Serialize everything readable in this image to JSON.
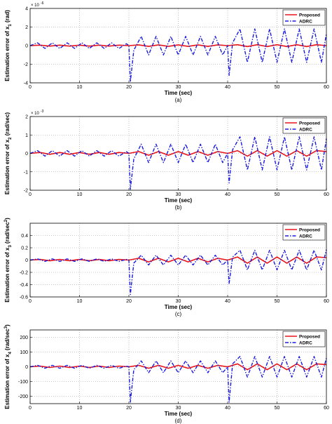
{
  "colors": {
    "proposed": "#e8151b",
    "adrc": "#1a1adf",
    "grid": "#9a9a9a",
    "axis": "#000000"
  },
  "chart_data": [
    {
      "type": "line",
      "panel_label": "(a)",
      "xlabel": "Time (sec)",
      "ylabel_main": "Estimation error of x",
      "ylabel_sub": "1",
      "ylabel_sup": "",
      "ylabel_unit": "(rad)",
      "exponent_label": "× 10",
      "exponent_power": "-6",
      "xlim": [
        0,
        60
      ],
      "ylim": [
        -4,
        4
      ],
      "xticks": [
        0,
        10,
        20,
        30,
        40,
        50,
        60
      ],
      "yticks": [
        -4,
        -2,
        0,
        2,
        4
      ],
      "ytick_labels": [
        "-4",
        "-2",
        "0",
        "2",
        "4"
      ],
      "xtick_labels": [
        "0",
        "10",
        "20",
        "30",
        "40",
        "50",
        "60"
      ],
      "grid": true,
      "legend_position": "top-right",
      "series": [
        {
          "name": "Proposed",
          "color_key": "proposed",
          "style": "solid",
          "x": [
            0,
            2,
            4,
            6,
            8,
            10,
            12,
            14,
            16,
            18,
            20,
            22,
            24,
            26,
            28,
            30,
            32,
            34,
            36,
            38,
            40,
            42,
            44,
            46,
            48,
            50,
            52,
            54,
            56,
            58,
            60
          ],
          "y": [
            0,
            0.05,
            -0.05,
            0.05,
            -0.05,
            0.05,
            -0.05,
            0.05,
            -0.05,
            0.05,
            0,
            0.08,
            -0.08,
            0.08,
            -0.08,
            0.08,
            -0.08,
            0.08,
            -0.08,
            0.08,
            0,
            0.1,
            -0.1,
            0.1,
            -0.1,
            0.1,
            -0.1,
            0.1,
            -0.1,
            0.1,
            0
          ]
        },
        {
          "name": "ADRC",
          "color_key": "adrc",
          "style": "dashdot",
          "x": [
            0,
            1.5,
            3,
            4.5,
            6,
            7.5,
            9,
            10.5,
            12,
            13.5,
            15,
            16.5,
            18,
            19.5,
            20,
            20.3,
            21,
            22.5,
            24,
            25.5,
            27,
            28.5,
            30,
            31.5,
            33,
            34.5,
            36,
            37.5,
            39,
            40,
            40.3,
            41,
            42.5,
            44,
            45.5,
            47,
            48.5,
            50,
            51.5,
            53,
            54.5,
            56,
            57.5,
            59,
            60
          ],
          "y": [
            0,
            0.3,
            -0.3,
            0.3,
            -0.3,
            0.3,
            -0.3,
            0.3,
            -0.3,
            0.3,
            -0.3,
            0.3,
            -0.3,
            0.2,
            0,
            -3.9,
            -0.5,
            1,
            -1,
            1,
            -1,
            1,
            -1,
            1,
            -1,
            1,
            -1,
            1,
            -1,
            0,
            -3.2,
            0.3,
            1.8,
            -1.8,
            1.8,
            -1.8,
            1.8,
            -1.8,
            1.8,
            -1.8,
            1.8,
            -1.8,
            1.8,
            -1.8,
            1.3
          ]
        }
      ]
    },
    {
      "type": "line",
      "panel_label": "(b)",
      "xlabel": "Time (sec)",
      "ylabel_main": "Estimation error of x",
      "ylabel_sub": "2",
      "ylabel_sup": "",
      "ylabel_unit": "(rad/sec)",
      "exponent_label": "× 10",
      "exponent_power": "-3",
      "xlim": [
        0,
        60
      ],
      "ylim": [
        -2,
        2
      ],
      "xticks": [
        0,
        10,
        20,
        30,
        40,
        50,
        60
      ],
      "yticks": [
        -2,
        -1,
        0,
        1,
        2
      ],
      "ytick_labels": [
        "-2",
        "-1",
        "0",
        "1",
        "2"
      ],
      "xtick_labels": [
        "0",
        "10",
        "20",
        "30",
        "40",
        "50",
        "60"
      ],
      "grid": true,
      "legend_position": "top-right",
      "series": [
        {
          "name": "Proposed",
          "color_key": "proposed",
          "style": "solid",
          "x": [
            0,
            2,
            4,
            6,
            8,
            10,
            12,
            14,
            16,
            18,
            20,
            22,
            24,
            26,
            28,
            30,
            32,
            34,
            36,
            38,
            40,
            42,
            44,
            46,
            48,
            50,
            52,
            54,
            56,
            58,
            60
          ],
          "y": [
            0,
            0.05,
            -0.05,
            0.05,
            -0.05,
            0.05,
            -0.05,
            0.05,
            -0.05,
            0.05,
            0,
            0.1,
            -0.1,
            0.1,
            -0.1,
            0.1,
            -0.1,
            0.1,
            -0.1,
            0.1,
            0,
            0.15,
            -0.15,
            0.15,
            -0.15,
            0.15,
            -0.15,
            0.15,
            -0.15,
            0.15,
            0.1
          ]
        },
        {
          "name": "ADRC",
          "color_key": "adrc",
          "style": "dashdot",
          "x": [
            0,
            1.5,
            3,
            4.5,
            6,
            7.5,
            9,
            10.5,
            12,
            13.5,
            15,
            16.5,
            18,
            19.5,
            20,
            20.3,
            21,
            22.5,
            24,
            25.5,
            27,
            28.5,
            30,
            31.5,
            33,
            34.5,
            36,
            37.5,
            39,
            40,
            40.3,
            41,
            42.5,
            44,
            45.5,
            47,
            48.5,
            50,
            51.5,
            53,
            54.5,
            56,
            57.5,
            59,
            60
          ],
          "y": [
            0,
            0.15,
            -0.15,
            0.15,
            -0.15,
            0.15,
            -0.15,
            0.15,
            -0.15,
            0.15,
            -0.15,
            0.15,
            -0.15,
            0.1,
            0,
            -1.95,
            -0.3,
            0.5,
            -0.5,
            0.5,
            -0.5,
            0.5,
            -0.5,
            0.5,
            -0.5,
            0.5,
            -0.5,
            0.5,
            -0.5,
            0,
            -1.6,
            0.2,
            0.9,
            -0.9,
            0.9,
            -0.9,
            0.9,
            -0.9,
            0.9,
            -0.9,
            0.9,
            -0.9,
            0.9,
            -0.9,
            0.8
          ]
        }
      ]
    },
    {
      "type": "line",
      "panel_label": "(c)",
      "xlabel": "Time (sec)",
      "ylabel_main": "Estimation error of x",
      "ylabel_sub": "3",
      "ylabel_sup": "2",
      "ylabel_unit": "(rad/sec",
      "exponent_label": "",
      "exponent_power": "",
      "xlim": [
        0,
        60
      ],
      "ylim": [
        -0.6,
        0.6
      ],
      "xticks": [
        0,
        10,
        20,
        30,
        40,
        50,
        60
      ],
      "yticks": [
        -0.6,
        -0.4,
        -0.2,
        0,
        0.2,
        0.4
      ],
      "ytick_labels": [
        "-0.6",
        "-0.4",
        "-0.2",
        "0",
        "0.2",
        "0.4"
      ],
      "xtick_labels": [
        "0",
        "10",
        "20",
        "30",
        "40",
        "50",
        "60"
      ],
      "grid": true,
      "legend_position": "top-right",
      "series": [
        {
          "name": "Proposed",
          "color_key": "proposed",
          "style": "solid",
          "x": [
            0,
            2,
            4,
            6,
            8,
            10,
            12,
            14,
            16,
            18,
            20,
            22,
            24,
            26,
            28,
            30,
            32,
            34,
            36,
            38,
            40,
            42,
            44,
            46,
            48,
            50,
            52,
            54,
            56,
            58,
            60
          ],
          "y": [
            0,
            0.01,
            -0.01,
            0.01,
            -0.01,
            0.01,
            -0.01,
            0.01,
            -0.01,
            0.01,
            0,
            0.03,
            -0.03,
            0.03,
            -0.03,
            0.03,
            -0.03,
            0.03,
            -0.03,
            0.03,
            0,
            0.05,
            -0.05,
            0.05,
            -0.05,
            0.05,
            -0.05,
            0.05,
            -0.05,
            0.05,
            0.04
          ]
        },
        {
          "name": "ADRC",
          "color_key": "adrc",
          "style": "dashdot",
          "x": [
            0,
            1.5,
            3,
            4.5,
            6,
            7.5,
            9,
            10.5,
            12,
            13.5,
            15,
            16.5,
            18,
            19.5,
            20,
            20.3,
            21,
            22.5,
            24,
            25.5,
            27,
            28.5,
            30,
            31.5,
            33,
            34.5,
            36,
            37.5,
            39,
            40,
            40.3,
            41,
            42.5,
            44,
            45.5,
            47,
            48.5,
            50,
            51.5,
            53,
            54.5,
            56,
            57.5,
            59,
            60
          ],
          "y": [
            0,
            0.02,
            -0.02,
            0.02,
            -0.02,
            0.02,
            -0.02,
            0.02,
            -0.02,
            0.02,
            -0.02,
            0.02,
            -0.02,
            0.01,
            0,
            -0.56,
            -0.05,
            0.08,
            -0.08,
            0.08,
            -0.08,
            0.08,
            -0.08,
            0.08,
            -0.08,
            0.08,
            -0.08,
            0.08,
            -0.08,
            0,
            -0.38,
            0.05,
            0.16,
            -0.16,
            0.16,
            -0.16,
            0.16,
            -0.16,
            0.16,
            -0.16,
            0.16,
            -0.16,
            0.16,
            -0.16,
            0.17
          ]
        }
      ]
    },
    {
      "type": "line",
      "panel_label": "(d)",
      "xlabel": "Time (sec)",
      "ylabel_main": "Estimation error of x",
      "ylabel_sub": "4",
      "ylabel_sup": "3",
      "ylabel_unit": "(rad/sec",
      "exponent_label": "",
      "exponent_power": "",
      "xlim": [
        0,
        60
      ],
      "ylim": [
        -250,
        250
      ],
      "xticks": [
        0,
        10,
        20,
        30,
        40,
        50,
        60
      ],
      "yticks": [
        -200,
        -100,
        0,
        100,
        200
      ],
      "ytick_labels": [
        "-200",
        "-100",
        "0",
        "100",
        "200"
      ],
      "xtick_labels": [
        "0",
        "10",
        "20",
        "30",
        "40",
        "50",
        "60"
      ],
      "grid": true,
      "legend_position": "top-right",
      "series": [
        {
          "name": "Proposed",
          "color_key": "proposed",
          "style": "solid",
          "x": [
            0,
            2,
            4,
            6,
            8,
            10,
            12,
            14,
            16,
            18,
            20,
            22,
            24,
            26,
            28,
            30,
            32,
            34,
            36,
            38,
            40,
            42,
            44,
            46,
            48,
            50,
            52,
            54,
            56,
            58,
            60
          ],
          "y": [
            0,
            5,
            -5,
            5,
            -5,
            5,
            -5,
            5,
            -5,
            5,
            0,
            10,
            -10,
            10,
            -10,
            10,
            -10,
            10,
            -10,
            10,
            0,
            20,
            -20,
            20,
            -20,
            20,
            -20,
            20,
            -20,
            20,
            15
          ]
        },
        {
          "name": "ADRC",
          "color_key": "adrc",
          "style": "dashdot",
          "x": [
            0,
            1.5,
            3,
            4.5,
            6,
            7.5,
            9,
            10.5,
            12,
            13.5,
            15,
            16.5,
            18,
            19.5,
            20,
            20.3,
            21,
            22.5,
            24,
            25.5,
            27,
            28.5,
            30,
            31.5,
            33,
            34.5,
            36,
            37.5,
            39,
            40,
            40.3,
            41,
            42.5,
            44,
            45.5,
            47,
            48.5,
            50,
            51.5,
            53,
            54.5,
            56,
            57.5,
            59,
            60
          ],
          "y": [
            0,
            10,
            -10,
            10,
            -10,
            10,
            -10,
            10,
            -10,
            10,
            -10,
            10,
            -10,
            5,
            0,
            -240,
            -20,
            40,
            -40,
            40,
            -40,
            40,
            -40,
            40,
            -40,
            40,
            -40,
            40,
            -40,
            0,
            -240,
            20,
            70,
            -70,
            70,
            -70,
            70,
            -70,
            70,
            -70,
            70,
            -70,
            70,
            -70,
            60
          ]
        }
      ]
    }
  ]
}
